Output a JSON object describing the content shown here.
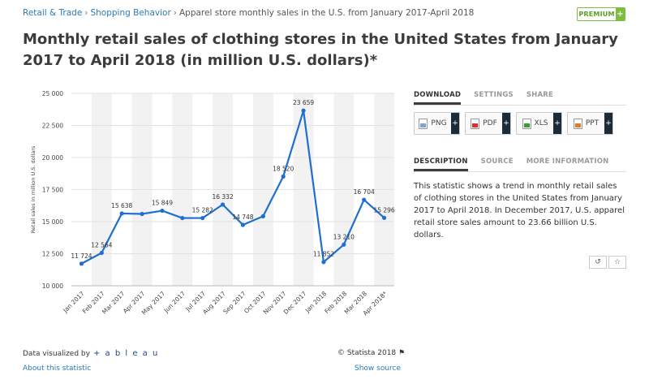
{
  "breadcrumb": {
    "items": [
      "Retail & Trade",
      "Shopping Behavior"
    ],
    "current": "Apparel store monthly sales in the U.S. from January 2017-April 2018",
    "separator": "›"
  },
  "premium": {
    "label": "PREMIUM",
    "plus": "+"
  },
  "title": "Monthly retail sales of clothing stores in the United States from January 2017 to April 2018 (in million U.S. dollars)*",
  "chart_data": {
    "type": "line",
    "title": "",
    "ylabel": "Retail sales in million U.S. dollars",
    "xlabel": "",
    "ylim": [
      10000,
      25000
    ],
    "yticks": [
      "10 000",
      "12 500",
      "15 000",
      "17 500",
      "20 000",
      "22 500",
      "25 000"
    ],
    "ytick_values": [
      10000,
      12500,
      15000,
      17500,
      20000,
      22500,
      25000
    ],
    "grid": true,
    "line_color": "#1f6fd1",
    "categories": [
      "Jan 2017",
      "Feb 2017",
      "Mar 2017",
      "Apr 2017",
      "May 2017",
      "Jun 2017",
      "Jul 2017",
      "Aug 2017",
      "Sep 2017",
      "Oct 2017",
      "Nov 2017",
      "Dec 2017",
      "Jan 2018",
      "Feb 2018",
      "Mar 2018",
      "Apr 2018*"
    ],
    "values": [
      11724,
      12564,
      15638,
      15600,
      15849,
      15282,
      15282,
      16332,
      14748,
      15420,
      18520,
      23659,
      11852,
      13210,
      16704,
      15296
    ],
    "labels": [
      "11 724",
      "12 564",
      "15 638",
      "",
      "15 849",
      "",
      "15 282",
      "16 332",
      "14 748",
      "",
      "18 520",
      "23 659",
      "11 852",
      "13 210",
      "16 704",
      "15 296"
    ]
  },
  "footer": {
    "data_visualized_by": "Data visualized by",
    "tableau": "+ a b l e a u",
    "copyright": "© Statista 2018",
    "flag_icon": "⚑",
    "about": "About this statistic",
    "show_source": "Show source"
  },
  "panel": {
    "tabs": [
      "DOWNLOAD",
      "SETTINGS",
      "SHARE"
    ],
    "downloads": [
      "PNG",
      "PDF",
      "XLS",
      "PPT"
    ],
    "tabs2": [
      "DESCRIPTION",
      "SOURCE",
      "MORE INFORMATION"
    ],
    "description": "This statistic shows a trend in monthly retail sales of clothing stores in the United States from January 2017 to April 2018. In December 2017, U.S. apparel retail store sales amount to 23.66 billion U.S. dollars.",
    "icons": [
      "↺",
      "☆"
    ]
  }
}
